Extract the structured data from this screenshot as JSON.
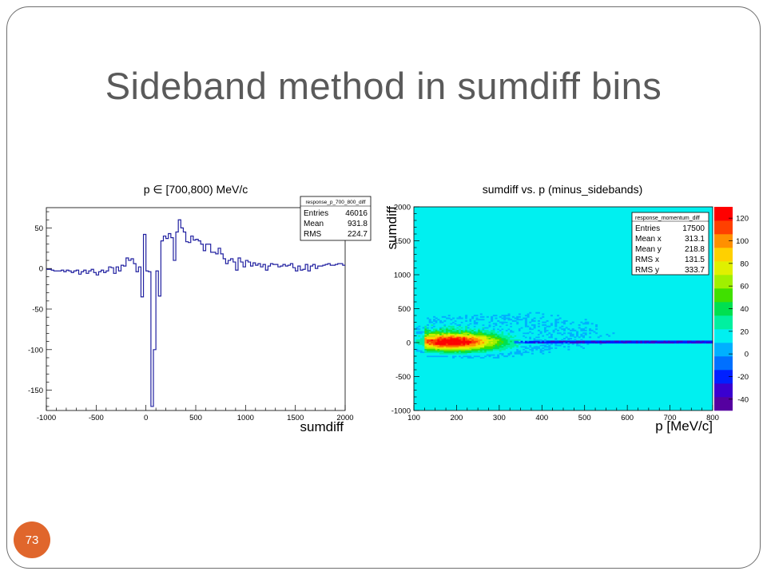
{
  "slide": {
    "title": "Sideband method in sumdiff bins",
    "page_number": "73",
    "colors": {
      "title": "#5a5a5a",
      "badge": "#e0662c",
      "frame": "#6e6e6e"
    }
  },
  "chart_data": [
    {
      "type": "histogram",
      "title": "p ∈ [700,800) MeV/c",
      "xlabel": "sumdiff",
      "ylabel": "",
      "xlim": [
        -1000,
        2000
      ],
      "ylim": [
        -175,
        75
      ],
      "xticks": [
        -1000,
        -500,
        0,
        500,
        1000,
        1500,
        2000
      ],
      "yticks": [
        -150,
        -100,
        -50,
        0,
        50
      ],
      "xtick_labels": [
        "-1000",
        "-500",
        "0",
        "500",
        "1000",
        "1500",
        "2000"
      ],
      "ytick_labels": [
        "-150",
        "-100",
        "-50",
        "0",
        "50"
      ],
      "bin_width": 25,
      "x_start": -1000,
      "values": [
        -1,
        -1,
        -2,
        -3,
        -3,
        -3,
        -2,
        -4,
        -2,
        -3,
        -5,
        -3,
        -2,
        -7,
        -4,
        -2,
        -6,
        -3,
        -1,
        -5,
        -8,
        -4,
        -2,
        -5,
        -3,
        2,
        1,
        -6,
        2,
        -3,
        4,
        3,
        13,
        10,
        12,
        6,
        -4,
        2,
        -35,
        42,
        -3,
        -4,
        -170,
        -100,
        -3,
        -34,
        34,
        40,
        37,
        43,
        38,
        10,
        45,
        60,
        50,
        45,
        33,
        32,
        40,
        35,
        36,
        34,
        30,
        22,
        30,
        30,
        20,
        20,
        18,
        25,
        18,
        12,
        6,
        10,
        12,
        8,
        -2,
        13,
        8,
        2,
        10,
        8,
        3,
        7,
        4,
        6,
        2,
        5,
        -2,
        3,
        6,
        5,
        5,
        2,
        3,
        5,
        3,
        4,
        6,
        1,
        -3,
        3,
        -2,
        -1,
        5,
        -3,
        3,
        5,
        0,
        3,
        3,
        4,
        5,
        6,
        4,
        4,
        5,
        6,
        6,
        4
      ],
      "stats_box": {
        "name": "response_p_700_800_diff",
        "rows": [
          [
            "Entries",
            "46016"
          ],
          [
            "Mean",
            "931.8"
          ],
          [
            "RMS",
            "224.7"
          ]
        ]
      },
      "line_color": "#2020a0"
    },
    {
      "type": "heatmap",
      "title": "sumdiff vs. p (minus_sidebands)",
      "xlabel": "p [MeV/c]",
      "ylabel": "sumdiff",
      "xlim": [
        100,
        800
      ],
      "ylim": [
        -1000,
        2000
      ],
      "xticks": [
        100,
        200,
        300,
        400,
        500,
        600,
        700,
        800
      ],
      "yticks": [
        -1000,
        -500,
        0,
        500,
        1000,
        1500,
        2000
      ],
      "xtick_labels": [
        "100",
        "200",
        "300",
        "400",
        "500",
        "600",
        "700",
        "800"
      ],
      "ytick_labels": [
        "-1000",
        "-500",
        "0",
        "500",
        "1000",
        "1500",
        "2000"
      ],
      "zlim": [
        -50,
        130
      ],
      "zticks": [
        -40,
        -20,
        0,
        20,
        40,
        60,
        80,
        100,
        120
      ],
      "ztick_labels": [
        "-40",
        "-20",
        "0",
        "20",
        "40",
        "60",
        "80",
        "100",
        "120"
      ],
      "background_color": "#00f0f0",
      "stats_box": {
        "name": "response_momentum_diff",
        "rows": [
          [
            "Entries",
            "17500"
          ],
          [
            "Mean x",
            "313.1"
          ],
          [
            "Mean y",
            "218.8"
          ],
          [
            "RMS x",
            "131.5"
          ],
          [
            "RMS y",
            "333.7"
          ]
        ]
      },
      "palette": [
        "#5500a0",
        "#3a00d0",
        "#0020ff",
        "#0070ff",
        "#00b0ff",
        "#00f0f0",
        "#00f0a0",
        "#00e050",
        "#40e000",
        "#a0f000",
        "#e0f000",
        "#ffd000",
        "#ff9000",
        "#ff4000",
        "#ff0000"
      ]
    }
  ]
}
